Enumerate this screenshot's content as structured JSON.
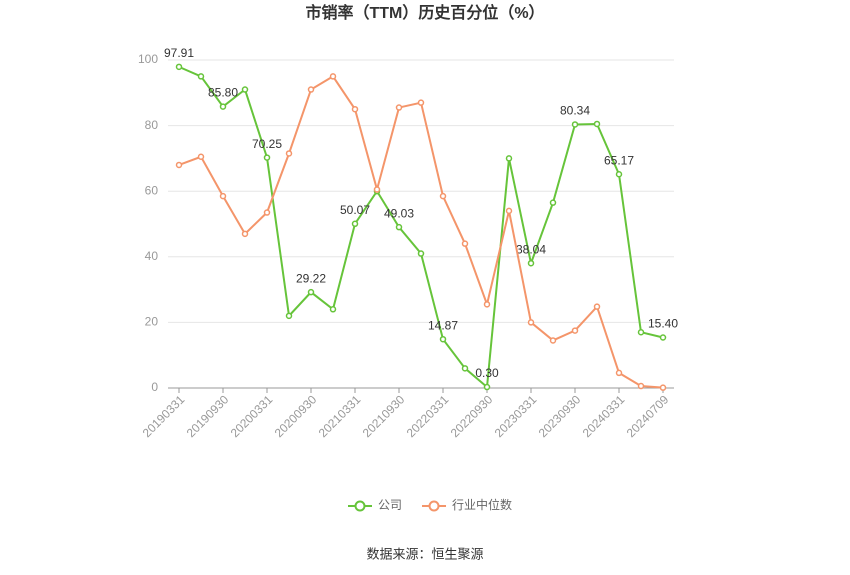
{
  "chart_data": {
    "type": "line",
    "title": "市销率（TTM）历史百分位（%）",
    "source": "数据来源：恒生聚源",
    "categories": [
      "20190331",
      null,
      "20190930",
      null,
      "20200331",
      null,
      "20200930",
      null,
      "20210331",
      null,
      "20210930",
      null,
      "20220331",
      null,
      "20220930",
      null,
      "20230331",
      null,
      "20230930",
      null,
      "20240331",
      null,
      "20240709"
    ],
    "series": [
      {
        "name": "公司",
        "color": "#66c43a",
        "values": [
          97.91,
          95,
          85.8,
          91,
          70.25,
          22,
          29.22,
          24,
          50.07,
          60,
          49.03,
          41,
          14.87,
          6,
          0.3,
          70,
          38.04,
          56.5,
          80.34,
          80.5,
          65.17,
          17,
          15.4
        ],
        "value_labels": [
          "97.91",
          null,
          "85.80",
          null,
          "70.25",
          null,
          "29.22",
          null,
          "50.07",
          null,
          "49.03",
          null,
          "14.87",
          null,
          "0.30",
          null,
          "38.04",
          null,
          "80.34",
          null,
          "65.17",
          null,
          "15.40"
        ]
      },
      {
        "name": "行业中位数",
        "color": "#f4956a",
        "values": [
          68,
          70.5,
          58.5,
          47,
          53.5,
          71.5,
          91,
          95,
          85,
          60.5,
          85.5,
          87,
          58.5,
          44,
          25.5,
          54,
          20,
          14.5,
          17.5,
          24.8,
          4.6,
          0.6,
          0.1
        ]
      }
    ],
    "ylim": [
      0,
      100
    ],
    "yticks": [
      0,
      20,
      40,
      60,
      80,
      100
    ],
    "grid": true
  }
}
